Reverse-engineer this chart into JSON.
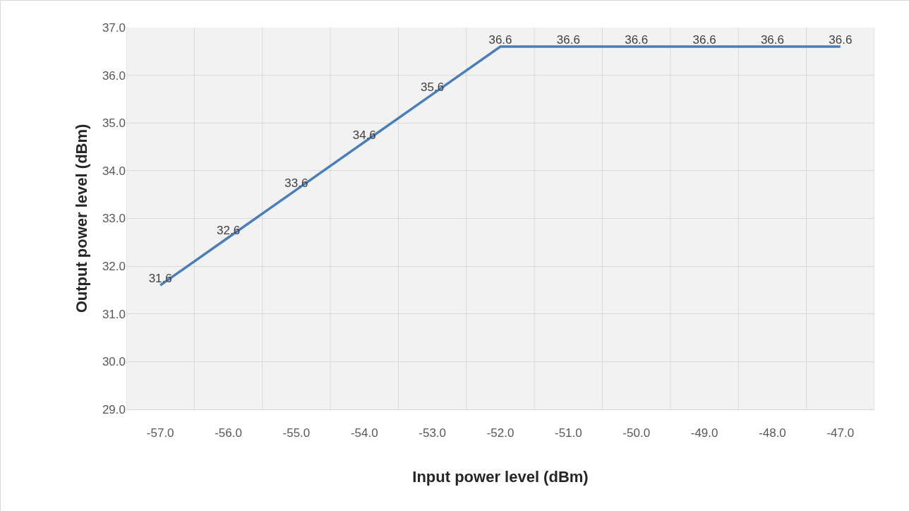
{
  "chart_data": {
    "type": "line",
    "xlabel": "Input power level (dBm)",
    "ylabel": "Output power level (dBm)",
    "categories": [
      "-57.0",
      "-56.0",
      "-55.0",
      "-54.0",
      "-53.0",
      "-52.0",
      "-51.0",
      "-50.0",
      "-49.0",
      "-48.0",
      "-47.0"
    ],
    "series": [
      {
        "color": "#4a7ebb",
        "values": [
          31.6,
          32.6,
          33.6,
          34.6,
          35.6,
          36.6,
          36.6,
          36.6,
          36.6,
          36.6,
          36.6
        ]
      }
    ],
    "ylim": [
      29,
      37
    ],
    "yticks": [
      {
        "value": 29,
        "label": "29.0"
      },
      {
        "value": 30,
        "label": "30.0"
      },
      {
        "value": 31,
        "label": "31.0"
      },
      {
        "value": 32,
        "label": "32.0"
      },
      {
        "value": 33,
        "label": "33.0"
      },
      {
        "value": 34,
        "label": "34.0"
      },
      {
        "value": 35,
        "label": "35.0"
      },
      {
        "value": 36,
        "label": "36.0"
      },
      {
        "value": 37,
        "label": "37.0"
      }
    ],
    "grid": true,
    "marker": "none",
    "line_style": "solid",
    "data_labels": true
  }
}
